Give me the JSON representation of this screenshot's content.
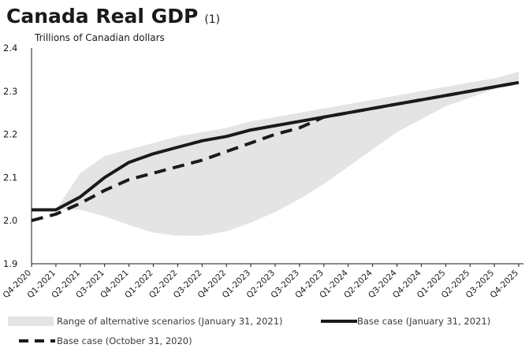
{
  "chart_data": {
    "type": "line",
    "title": "Canada Real GDP",
    "title_note": "(1)",
    "ylabel": "Trillions of Canadian dollars",
    "ylim": [
      1.9,
      2.4
    ],
    "y_ticks": [
      "1.9",
      "2.0",
      "2.1",
      "2.2",
      "2.3",
      "2.4"
    ],
    "grid": false,
    "legend_position": "bottom",
    "categories": [
      "Q4-2020",
      "Q1-2021",
      "Q2-2021",
      "Q3-2021",
      "Q4-2021",
      "Q1-2022",
      "Q2-2022",
      "Q3-2022",
      "Q4-2022",
      "Q1-2023",
      "Q2-2023",
      "Q3-2023",
      "Q4-2023",
      "Q1-2024",
      "Q2-2024",
      "Q3-2024",
      "Q4-2024",
      "Q1-2025",
      "Q2-2025",
      "Q3-2025",
      "Q4-2025"
    ],
    "range": {
      "name": "Range of alternative scenarios (January 31, 2021)",
      "color": "#e4e4e4",
      "upper": [
        null,
        2.025,
        2.11,
        2.15,
        2.165,
        2.18,
        2.195,
        2.205,
        2.215,
        2.23,
        2.24,
        2.25,
        2.26,
        2.27,
        2.28,
        2.29,
        2.3,
        2.31,
        2.32,
        2.33,
        2.345
      ],
      "lower": [
        null,
        2.025,
        2.025,
        2.01,
        1.99,
        1.972,
        1.965,
        1.965,
        1.975,
        1.995,
        2.02,
        2.05,
        2.085,
        2.125,
        2.165,
        2.205,
        2.235,
        2.265,
        2.285,
        2.305,
        2.32
      ]
    },
    "series": [
      {
        "name": "Base case (January 31, 2021)",
        "style": "solid",
        "color": "#1a1a1a",
        "values": [
          2.025,
          2.025,
          2.055,
          2.1,
          2.135,
          2.155,
          2.17,
          2.185,
          2.195,
          2.21,
          2.22,
          2.23,
          2.24,
          2.25,
          2.26,
          2.27,
          2.28,
          2.29,
          2.3,
          2.31,
          2.32
        ]
      },
      {
        "name": "Base case (October 31, 2020)",
        "style": "dashed",
        "color": "#1a1a1a",
        "values": [
          2.0,
          2.015,
          2.04,
          2.07,
          2.095,
          2.11,
          2.125,
          2.14,
          2.16,
          2.18,
          2.2,
          2.215,
          2.24,
          2.25,
          2.26,
          2.27,
          2.28,
          2.29,
          2.3,
          2.31,
          2.32
        ]
      }
    ]
  }
}
